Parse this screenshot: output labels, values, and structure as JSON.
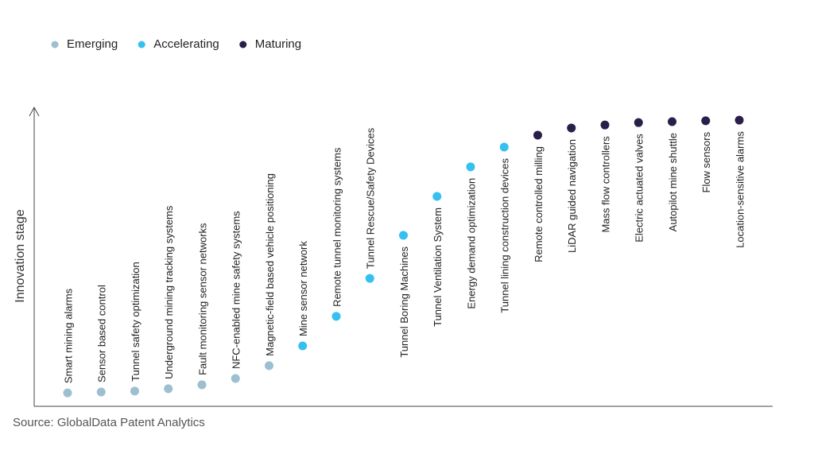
{
  "chart_data": {
    "type": "scatter",
    "y_label": "Innovation stage",
    "source": "Source: GlobalData Patent Analytics",
    "ylim": [
      0,
      100
    ],
    "categories": [
      "Smart mining alarms",
      "Sensor based control",
      "Tunnel safety optimization",
      "Underground mining tracking systems",
      "Fault monitoring sensor networks",
      "NFC-enabled mine safety systems",
      "Magnetic-field based vehicle positioning",
      "Mine sensor network",
      "Remote tunnel monitoring systems",
      "Tunnel Rescue/Safety Devices",
      "Tunnel Boring Machines",
      "Tunnel Ventilation System",
      "Energy demand optimization",
      "Tunnel lining construction devices",
      "Remote controlled milling",
      "LiDAR guided navigation",
      "Mass flow controllers",
      "Electric actuated valves",
      "Autopilot mine shuttle",
      "Flow sensors",
      "Location-sensitive alarms"
    ],
    "series": [
      {
        "name": "Emerging",
        "color": "#9dbfcf",
        "values": [
          4.5,
          4.8,
          5.1,
          5.9,
          7.2,
          9.3,
          13.6,
          null,
          null,
          null,
          null,
          null,
          null,
          null,
          null,
          null,
          null,
          null,
          null,
          null,
          null
        ]
      },
      {
        "name": "Accelerating",
        "color": "#35c0f0",
        "values": [
          null,
          null,
          null,
          null,
          null,
          null,
          null,
          20.2,
          30.1,
          42.8,
          57.2,
          70.2,
          80.1,
          86.7,
          null,
          null,
          null,
          null,
          null,
          null,
          null
        ]
      },
      {
        "name": "Maturing",
        "color": "#2a1f4a",
        "values": [
          null,
          null,
          null,
          null,
          null,
          null,
          null,
          null,
          null,
          null,
          null,
          null,
          null,
          null,
          90.7,
          93.1,
          94.1,
          94.9,
          95.2,
          95.5,
          95.7
        ]
      }
    ]
  }
}
